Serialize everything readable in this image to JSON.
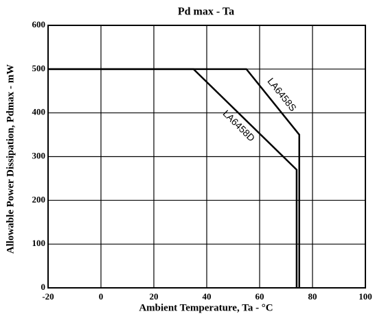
{
  "chart_data": {
    "type": "line",
    "title": "Pd max - Ta",
    "x_label": "Ambient Temperature, Ta - °C",
    "y_label": "Allowable Power Dissipation, Pdmax - mW",
    "series": [
      {
        "name": "LA6458S",
        "color": "#000000",
        "x": [
          -20,
          55,
          75,
          75
        ],
        "values": [
          500,
          500,
          350,
          0
        ]
      },
      {
        "name": "LA6458D",
        "color": "#000000",
        "x": [
          -20,
          35,
          74,
          74
        ],
        "values": [
          500,
          500,
          270,
          0
        ]
      }
    ],
    "xlim": [
      -20,
      100
    ],
    "xticks": [
      -20,
      0,
      20,
      40,
      60,
      80,
      100
    ],
    "ylim": [
      0,
      600
    ],
    "yticks": [
      0,
      100,
      200,
      300,
      400,
      500,
      600
    ],
    "grid": true
  }
}
